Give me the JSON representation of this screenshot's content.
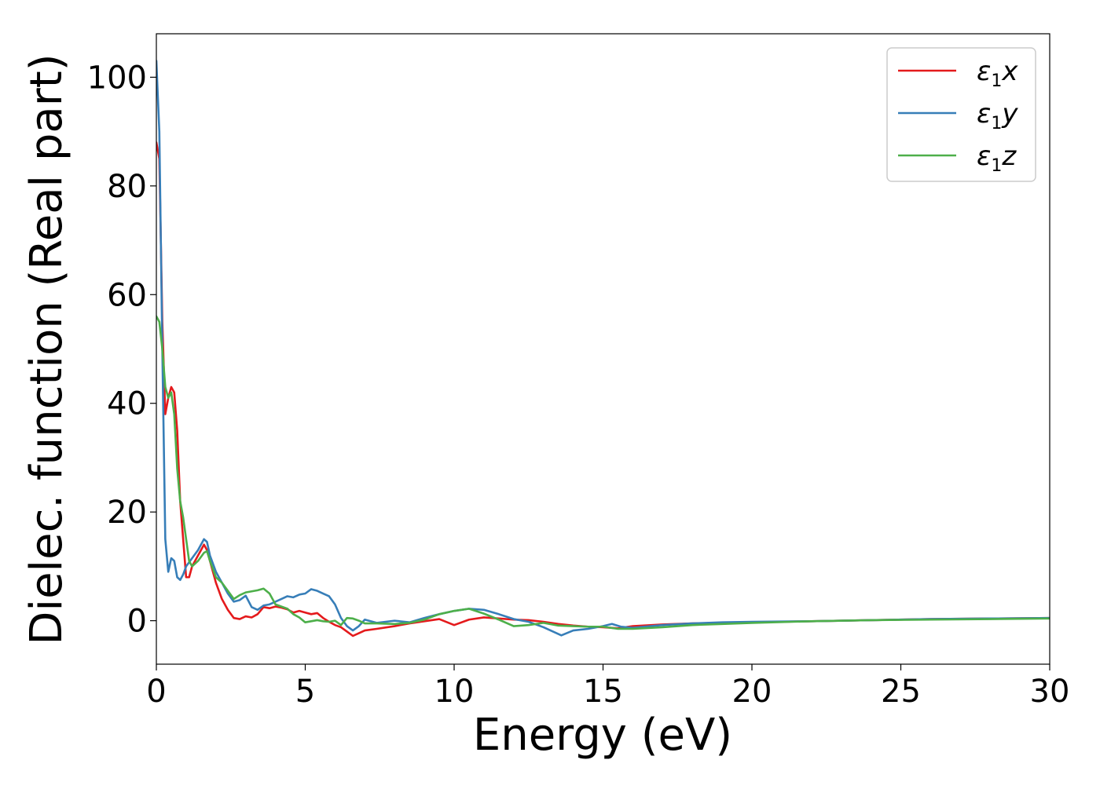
{
  "chart_data": {
    "type": "line",
    "xlabel": "Energy (eV)",
    "ylabel": "Dielec. function (Real part)",
    "xlim": [
      0,
      30
    ],
    "ylim": [
      -8,
      108
    ],
    "xticks": [
      0,
      5,
      10,
      15,
      20,
      25,
      30
    ],
    "xtick_labels": [
      "0",
      "5",
      "10",
      "15",
      "20",
      "25",
      "30"
    ],
    "yticks": [
      0,
      20,
      40,
      60,
      80,
      100
    ],
    "ytick_labels": [
      "0",
      "20",
      "40",
      "60",
      "80",
      "100"
    ],
    "grid": false,
    "legend": {
      "position": "top-right"
    },
    "series": [
      {
        "name": "ε1x",
        "symbol": "ε",
        "subscript": "1",
        "suffix": "x",
        "color": "#e41a1c",
        "points": [
          [
            0,
            88
          ],
          [
            0.1,
            85
          ],
          [
            0.2,
            55
          ],
          [
            0.3,
            38
          ],
          [
            0.4,
            41
          ],
          [
            0.5,
            43
          ],
          [
            0.6,
            42
          ],
          [
            0.7,
            35
          ],
          [
            0.8,
            22
          ],
          [
            0.9,
            15
          ],
          [
            1.0,
            8
          ],
          [
            1.1,
            8
          ],
          [
            1.2,
            10
          ],
          [
            1.4,
            12
          ],
          [
            1.6,
            14
          ],
          [
            1.7,
            13
          ],
          [
            1.8,
            11
          ],
          [
            2.0,
            7
          ],
          [
            2.2,
            4
          ],
          [
            2.4,
            2
          ],
          [
            2.6,
            0.5
          ],
          [
            2.8,
            0.3
          ],
          [
            3.0,
            0.8
          ],
          [
            3.2,
            0.6
          ],
          [
            3.4,
            1.2
          ],
          [
            3.6,
            2.5
          ],
          [
            3.8,
            2.3
          ],
          [
            4.0,
            2.6
          ],
          [
            4.2,
            2.4
          ],
          [
            4.4,
            2.1
          ],
          [
            4.6,
            1.5
          ],
          [
            4.8,
            1.8
          ],
          [
            5.0,
            1.5
          ],
          [
            5.2,
            1.2
          ],
          [
            5.4,
            1.4
          ],
          [
            5.6,
            0.5
          ],
          [
            5.8,
            -0.2
          ],
          [
            6.0,
            -0.8
          ],
          [
            6.2,
            -1.2
          ],
          [
            6.4,
            -2.0
          ],
          [
            6.6,
            -2.8
          ],
          [
            6.8,
            -2.3
          ],
          [
            7.0,
            -1.8
          ],
          [
            7.4,
            -1.5
          ],
          [
            8.0,
            -1.0
          ],
          [
            8.5,
            -0.5
          ],
          [
            9.0,
            -0.1
          ],
          [
            9.5,
            0.3
          ],
          [
            10.0,
            -0.8
          ],
          [
            10.5,
            0.2
          ],
          [
            11.0,
            0.6
          ],
          [
            11.5,
            0.4
          ],
          [
            12.0,
            0.2
          ],
          [
            12.5,
            0.1
          ],
          [
            13.0,
            -0.2
          ],
          [
            13.5,
            -0.6
          ],
          [
            14.0,
            -0.9
          ],
          [
            14.5,
            -1.1
          ],
          [
            15.0,
            -1.2
          ],
          [
            15.5,
            -1.4
          ],
          [
            16.0,
            -1.0
          ],
          [
            17.0,
            -0.7
          ],
          [
            18.0,
            -0.5
          ],
          [
            19.0,
            -0.4
          ],
          [
            20.0,
            -0.3
          ],
          [
            22.0,
            -0.1
          ],
          [
            24.0,
            0.1
          ],
          [
            26.0,
            0.3
          ],
          [
            28.0,
            0.4
          ],
          [
            30.0,
            0.5
          ]
        ]
      },
      {
        "name": "ε1y",
        "symbol": "ε",
        "subscript": "1",
        "suffix": "y",
        "color": "#377eb8",
        "points": [
          [
            0,
            103
          ],
          [
            0.1,
            90
          ],
          [
            0.2,
            50
          ],
          [
            0.3,
            15
          ],
          [
            0.4,
            9
          ],
          [
            0.5,
            11.5
          ],
          [
            0.6,
            11
          ],
          [
            0.7,
            8
          ],
          [
            0.8,
            7.5
          ],
          [
            0.9,
            8.5
          ],
          [
            1.0,
            10
          ],
          [
            1.2,
            11.5
          ],
          [
            1.4,
            13
          ],
          [
            1.6,
            15
          ],
          [
            1.7,
            14.5
          ],
          [
            1.8,
            12
          ],
          [
            2.0,
            9
          ],
          [
            2.2,
            7
          ],
          [
            2.4,
            5
          ],
          [
            2.6,
            3.5
          ],
          [
            2.8,
            3.8
          ],
          [
            3.0,
            4.6
          ],
          [
            3.2,
            2.5
          ],
          [
            3.4,
            2.0
          ],
          [
            3.6,
            2.8
          ],
          [
            3.8,
            3.0
          ],
          [
            4.0,
            3.5
          ],
          [
            4.2,
            4.0
          ],
          [
            4.4,
            4.5
          ],
          [
            4.6,
            4.3
          ],
          [
            4.8,
            4.8
          ],
          [
            5.0,
            5.0
          ],
          [
            5.2,
            5.8
          ],
          [
            5.4,
            5.5
          ],
          [
            5.6,
            5.0
          ],
          [
            5.8,
            4.5
          ],
          [
            6.0,
            3.0
          ],
          [
            6.2,
            0.5
          ],
          [
            6.4,
            -1.0
          ],
          [
            6.6,
            -1.8
          ],
          [
            6.8,
            -1.0
          ],
          [
            7.0,
            0.2
          ],
          [
            7.4,
            -0.4
          ],
          [
            8.0,
            0.0
          ],
          [
            8.5,
            -0.3
          ],
          [
            9.0,
            0.5
          ],
          [
            9.5,
            1.2
          ],
          [
            10.0,
            1.8
          ],
          [
            10.5,
            2.2
          ],
          [
            11.0,
            2.0
          ],
          [
            11.5,
            1.2
          ],
          [
            12.0,
            0.3
          ],
          [
            12.5,
            -0.2
          ],
          [
            13.0,
            -1.2
          ],
          [
            13.6,
            -2.7
          ],
          [
            14.0,
            -1.8
          ],
          [
            14.5,
            -1.5
          ],
          [
            15.0,
            -1.0
          ],
          [
            15.3,
            -0.6
          ],
          [
            15.6,
            -1.1
          ],
          [
            16.0,
            -1.3
          ],
          [
            17.0,
            -0.8
          ],
          [
            18.0,
            -0.5
          ],
          [
            19.0,
            -0.3
          ],
          [
            20.0,
            -0.2
          ],
          [
            22.0,
            -0.1
          ],
          [
            24.0,
            0.1
          ],
          [
            26.0,
            0.3
          ],
          [
            28.0,
            0.4
          ],
          [
            30.0,
            0.5
          ]
        ]
      },
      {
        "name": "ε1z",
        "symbol": "ε",
        "subscript": "1",
        "suffix": "z",
        "color": "#4daf4a",
        "points": [
          [
            0,
            56
          ],
          [
            0.1,
            55
          ],
          [
            0.2,
            50
          ],
          [
            0.3,
            43
          ],
          [
            0.4,
            41
          ],
          [
            0.5,
            42
          ],
          [
            0.6,
            38
          ],
          [
            0.7,
            28
          ],
          [
            0.8,
            22
          ],
          [
            0.9,
            19
          ],
          [
            1.0,
            15
          ],
          [
            1.1,
            11
          ],
          [
            1.2,
            10
          ],
          [
            1.4,
            11
          ],
          [
            1.6,
            12.5
          ],
          [
            1.7,
            12.8
          ],
          [
            1.8,
            11
          ],
          [
            2.0,
            8
          ],
          [
            2.2,
            7
          ],
          [
            2.4,
            5.5
          ],
          [
            2.6,
            4.0
          ],
          [
            2.8,
            4.7
          ],
          [
            3.0,
            5.2
          ],
          [
            3.2,
            5.4
          ],
          [
            3.4,
            5.6
          ],
          [
            3.6,
            5.9
          ],
          [
            3.8,
            5.0
          ],
          [
            4.0,
            3.0
          ],
          [
            4.2,
            2.6
          ],
          [
            4.4,
            2.2
          ],
          [
            4.6,
            1.2
          ],
          [
            4.8,
            0.6
          ],
          [
            5.0,
            -0.3
          ],
          [
            5.2,
            -0.1
          ],
          [
            5.4,
            0.1
          ],
          [
            5.6,
            -0.1
          ],
          [
            5.8,
            -0.2
          ],
          [
            6.0,
            0.0
          ],
          [
            6.2,
            -0.8
          ],
          [
            6.4,
            0.5
          ],
          [
            6.6,
            0.4
          ],
          [
            6.8,
            0.0
          ],
          [
            7.0,
            -0.5
          ],
          [
            7.4,
            -0.5
          ],
          [
            8.0,
            -0.6
          ],
          [
            8.5,
            -0.4
          ],
          [
            9.0,
            0.2
          ],
          [
            9.5,
            1.2
          ],
          [
            10.0,
            1.8
          ],
          [
            10.5,
            2.2
          ],
          [
            11.0,
            1.3
          ],
          [
            11.5,
            0.2
          ],
          [
            12.0,
            -1.0
          ],
          [
            12.5,
            -0.8
          ],
          [
            13.0,
            -0.4
          ],
          [
            13.5,
            -0.9
          ],
          [
            14.0,
            -1.0
          ],
          [
            14.5,
            -1.1
          ],
          [
            15.0,
            -1.1
          ],
          [
            15.5,
            -1.5
          ],
          [
            16.0,
            -1.5
          ],
          [
            17.0,
            -1.2
          ],
          [
            18.0,
            -0.8
          ],
          [
            19.0,
            -0.6
          ],
          [
            20.0,
            -0.4
          ],
          [
            22.0,
            -0.1
          ],
          [
            24.0,
            0.1
          ],
          [
            26.0,
            0.2
          ],
          [
            28.0,
            0.3
          ],
          [
            30.0,
            0.4
          ]
        ]
      }
    ]
  }
}
